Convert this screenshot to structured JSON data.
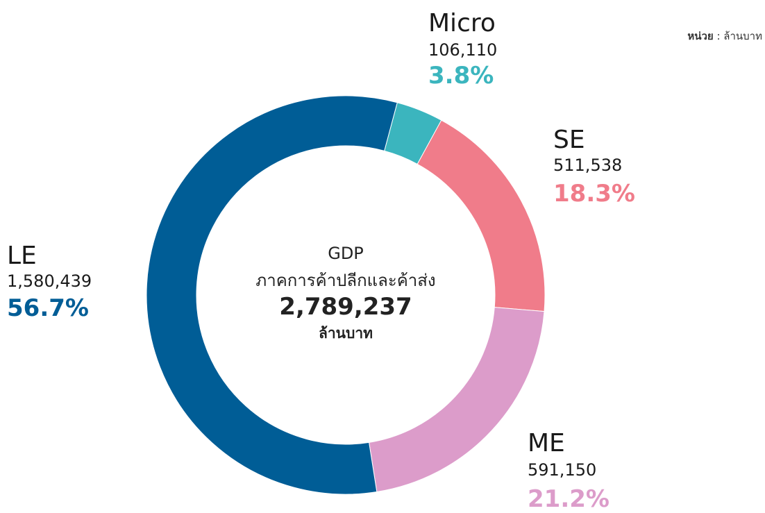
{
  "chart_data": {
    "type": "pie",
    "categories": [
      "Micro",
      "SE",
      "ME",
      "LE"
    ],
    "amounts": [
      106110,
      511538,
      591150,
      1580439
    ],
    "amount_labels": [
      "106,110",
      "511,538",
      "591,150",
      "1,580,439"
    ],
    "values": [
      3.8,
      18.3,
      21.2,
      56.7
    ],
    "value_labels": [
      "3.8%",
      "18.3%",
      "21.2%",
      "56.7%"
    ],
    "colors": [
      "#3bb5be",
      "#f07c8a",
      "#dc9cca",
      "#005d96"
    ],
    "center": {
      "title": "GDP",
      "subtitle": "ภาคการค้าปลีกและค้าส่ง",
      "total": 2789237,
      "total_label": "2,789,237",
      "unit": "ล้านบาท"
    },
    "unit_note": {
      "label": "หน่วย",
      "text": ": ล้านบาท"
    }
  }
}
